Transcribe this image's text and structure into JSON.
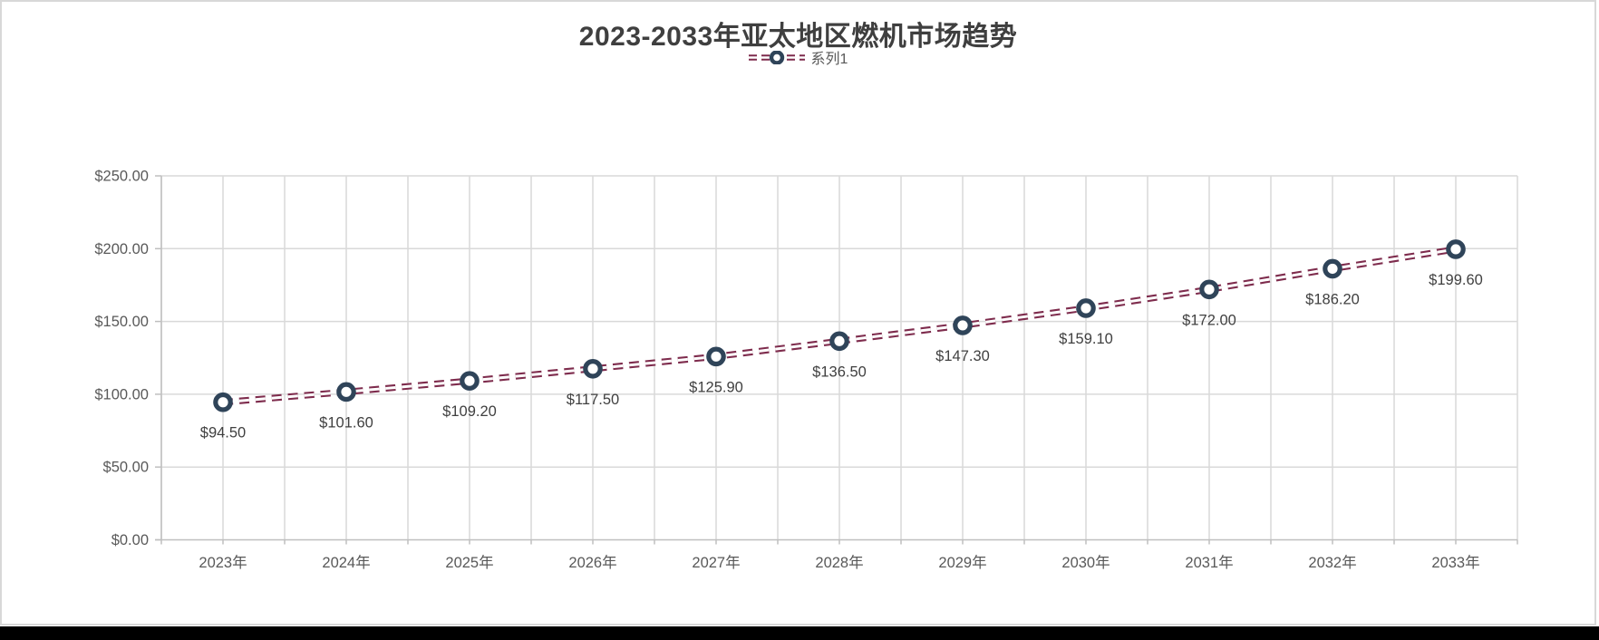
{
  "window": {
    "bottom_bar_color": "#000000",
    "frame_border_color": "#d8d8d8",
    "background_color": "#ffffff"
  },
  "chart_data": {
    "type": "line",
    "title": "2023-2033年亚太地区燃机市场趋势",
    "xlabel": "",
    "ylabel": "",
    "legend": {
      "position": "top",
      "entries": [
        "系列1"
      ]
    },
    "categories": [
      "2023年",
      "2024年",
      "2025年",
      "2026年",
      "2027年",
      "2028年",
      "2029年",
      "2030年",
      "2031年",
      "2032年",
      "2033年"
    ],
    "series": [
      {
        "name": "系列1",
        "values": [
          94.5,
          101.6,
          109.2,
          117.5,
          125.9,
          136.5,
          147.3,
          159.1,
          172.0,
          186.2,
          199.6
        ],
        "point_labels": [
          "$94.50",
          "$101.60",
          "$109.20",
          "$117.50",
          "$125.90",
          "$136.50",
          "$147.30",
          "$159.10",
          "$172.00",
          "$186.20",
          "$199.60"
        ],
        "line_style": "double-dashed",
        "marker": "open-circle"
      }
    ],
    "y_axis": {
      "range": [
        0,
        250
      ],
      "ticks": [
        0,
        50,
        100,
        150,
        200,
        250
      ],
      "tick_labels": [
        "$0.00",
        "$50.00",
        "$100.00",
        "$150.00",
        "$200.00",
        "$250.00"
      ]
    },
    "grid": {
      "horizontal": true,
      "vertical": true,
      "vertical_lines_per_category": 2
    },
    "colors": {
      "line": "#7e2c4d",
      "marker_ring": "#2f4459",
      "marker_fill": "#ffffff",
      "grid": "#d9d9d9",
      "axis_line": "#bfbfbf",
      "axis_text": "#595959",
      "title_text": "#3f3f3f",
      "data_label_text": "#404040"
    }
  }
}
